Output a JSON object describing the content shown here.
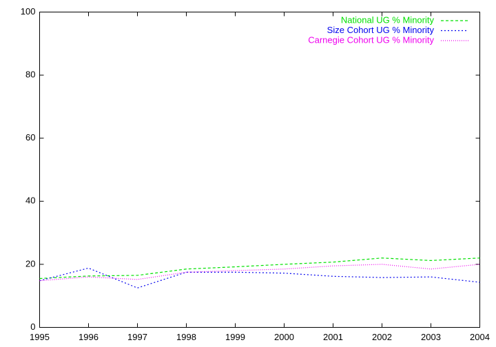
{
  "chart_data": {
    "type": "line",
    "x": [
      1995,
      1996,
      1997,
      1998,
      1999,
      2000,
      2001,
      2002,
      2003,
      2004
    ],
    "series": [
      {
        "name": "National UG % Minority",
        "color": "#00e000",
        "values": [
          15.5,
          16.3,
          16.5,
          18.5,
          19.2,
          20.0,
          20.7,
          22.0,
          21.2,
          22.0
        ]
      },
      {
        "name": "Size Cohort UG % Minority",
        "color": "#0000ee",
        "values": [
          14.8,
          18.8,
          12.5,
          17.5,
          17.5,
          17.2,
          16.2,
          15.8,
          16.0,
          14.3
        ]
      },
      {
        "name": "Carnegie Cohort UG % Minority",
        "color": "#ee00ee",
        "values": [
          14.8,
          16.0,
          15.2,
          17.5,
          18.0,
          18.5,
          19.5,
          20.0,
          18.5,
          20.0
        ]
      }
    ],
    "xlim": [
      1995,
      2004
    ],
    "xticks": [
      1995,
      1996,
      1997,
      1998,
      1999,
      2000,
      2001,
      2002,
      2003,
      2004
    ],
    "ylim": [
      0,
      100
    ],
    "yticks": [
      0,
      20,
      40,
      60,
      80,
      100
    ],
    "grid": false,
    "legend": "top-right"
  }
}
